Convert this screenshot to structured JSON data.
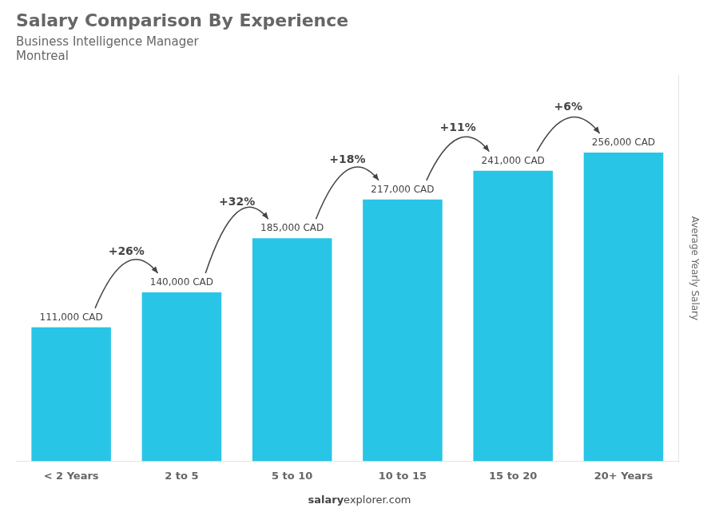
{
  "chart_data": {
    "type": "bar",
    "title": "Salary Comparison By Experience",
    "subtitle": [
      "Business Intelligence Manager",
      "Montreal"
    ],
    "ylabel": "Average Yearly Salary",
    "categories": [
      "< 2 Years",
      "2 to 5",
      "5 to 10",
      "10 to 15",
      "15 to 20",
      "20+ Years"
    ],
    "values": [
      111000,
      140000,
      185000,
      217000,
      241000,
      256000
    ],
    "value_labels": [
      "111,000 CAD",
      "140,000 CAD",
      "185,000 CAD",
      "217,000 CAD",
      "241,000 CAD",
      "256,000 CAD"
    ],
    "data_labels": true,
    "color": "#29c5e6",
    "ylim": [
      0,
      320000
    ],
    "grid": false,
    "tick_labels": "x",
    "annotations": [
      "+26%",
      "+32%",
      "+18%",
      "+11%",
      "+6%"
    ],
    "footer": [
      "salary",
      "explorer.com"
    ]
  }
}
